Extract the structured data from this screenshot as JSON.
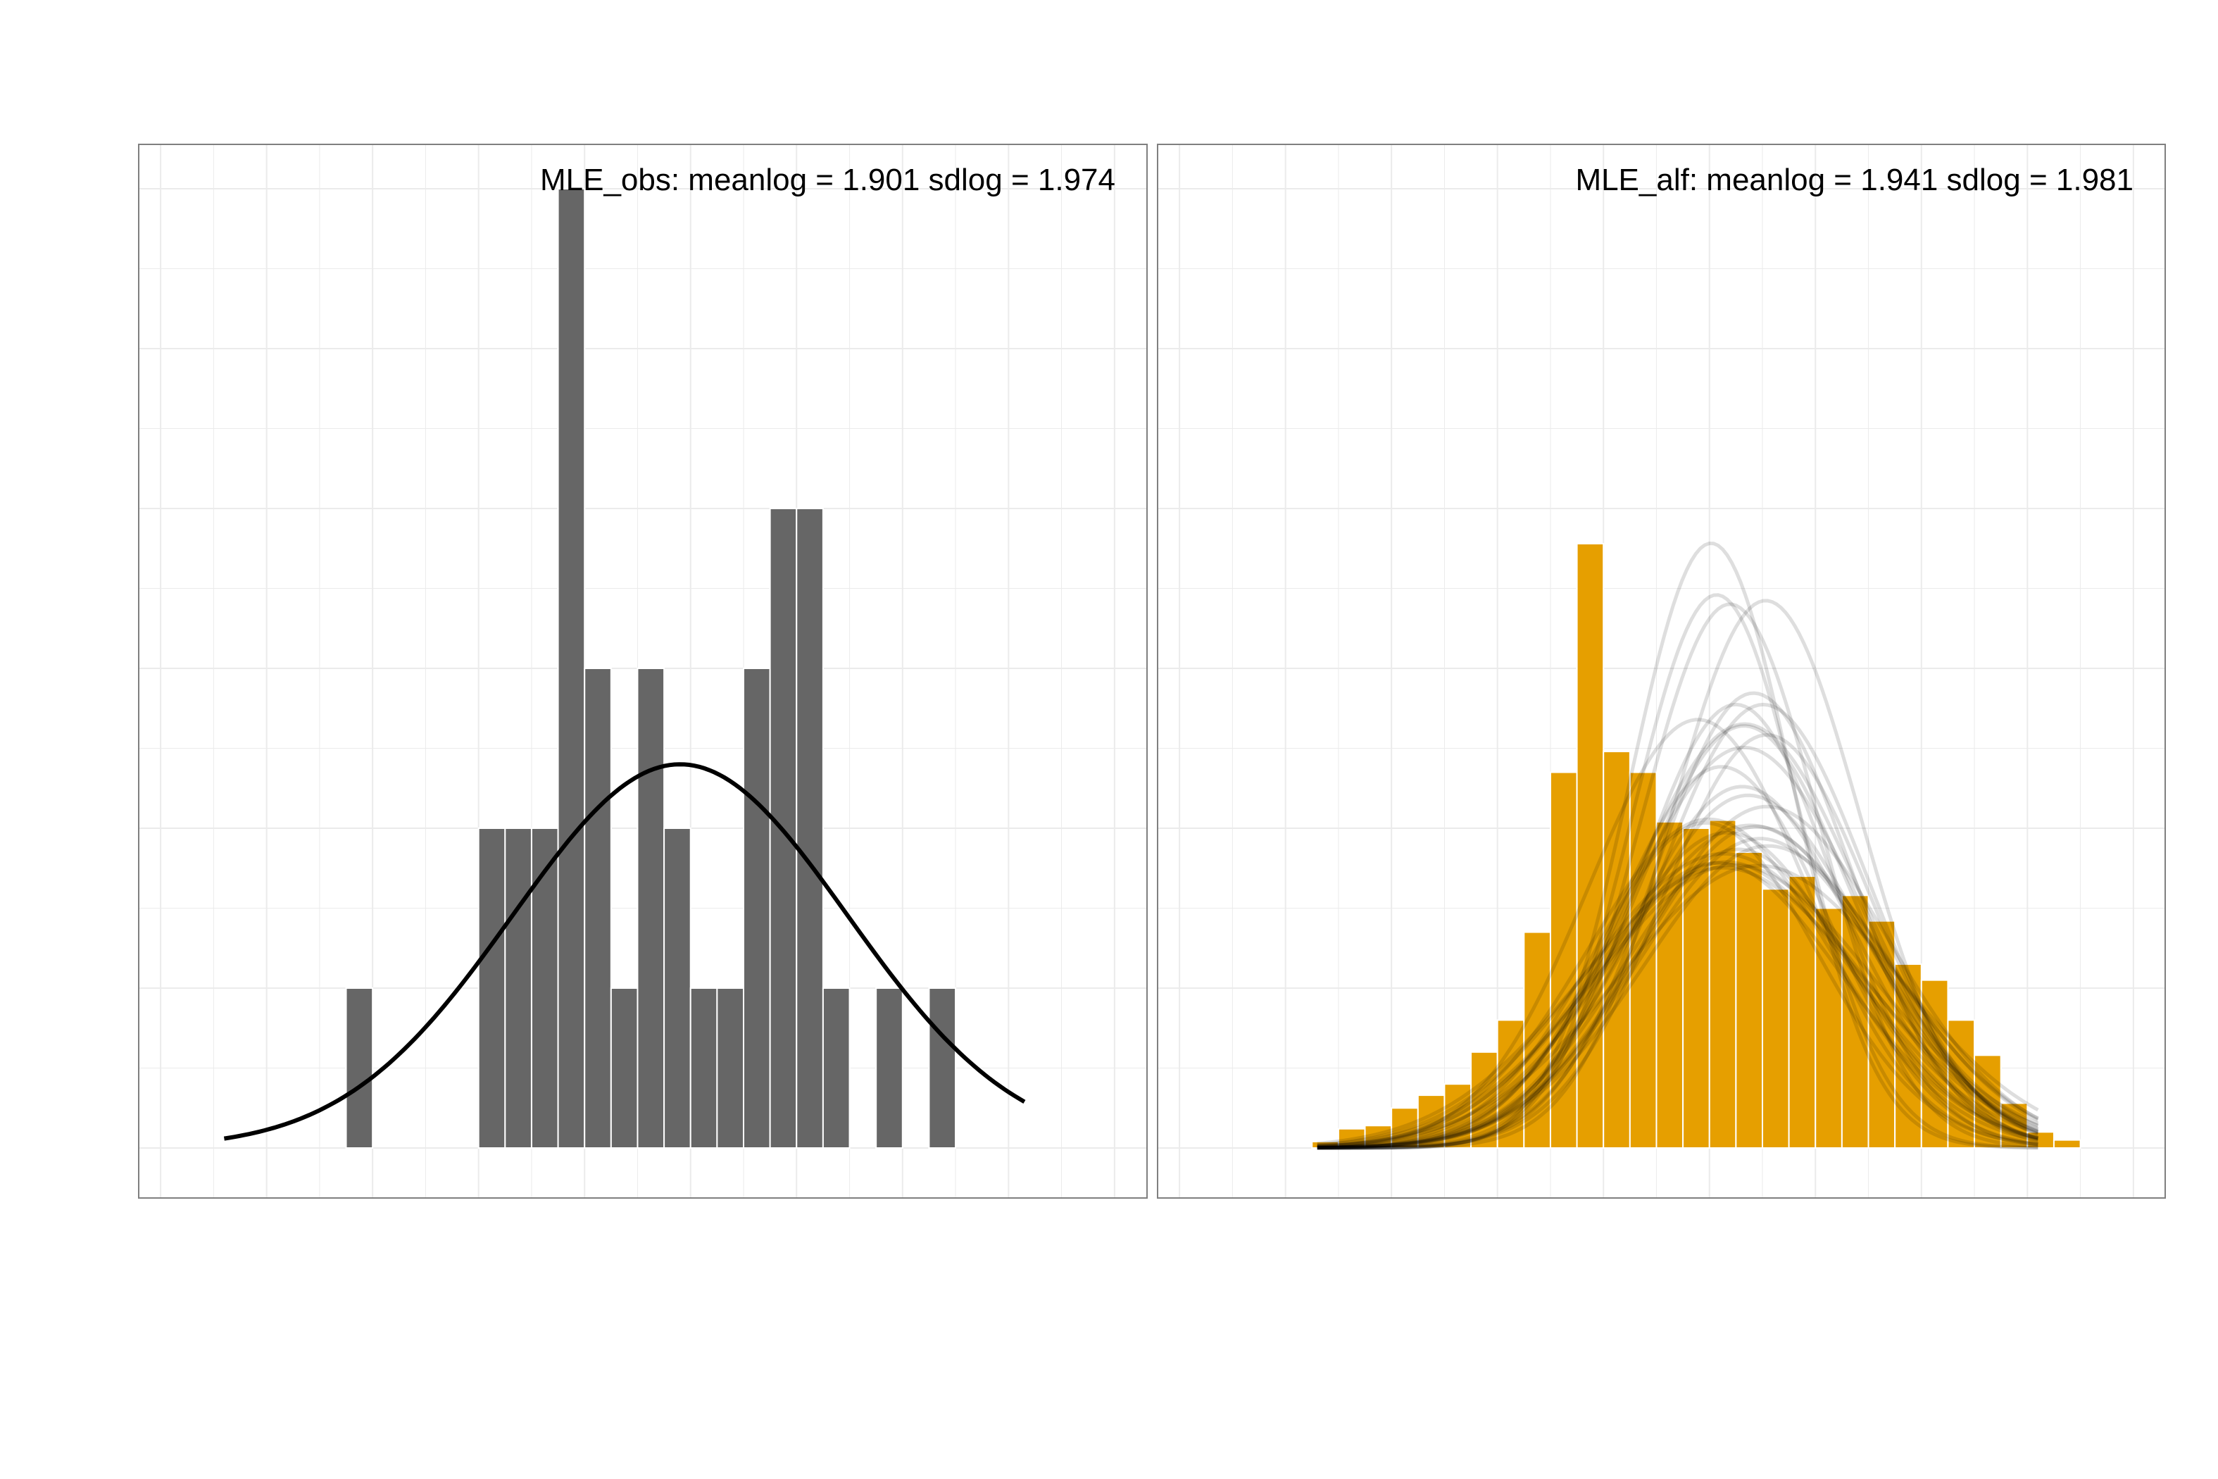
{
  "colors": {
    "left_bar": "#666666",
    "right_bar": "#e69f00",
    "curve": "#000000",
    "grid": "#ebebeb",
    "border": "#7f7f7f"
  },
  "chart_data": [
    {
      "type": "bar",
      "subtype": "histogram-with-density",
      "annotation": "MLE_obs: meanlog = 1.901 sdlog = 1.974",
      "grid": true,
      "xlim": [
        -3.2,
        6.3
      ],
      "ylim": [
        -0.3,
        6.0
      ],
      "bin_width": 0.25,
      "bin_starts": [
        -1.25,
        -1.0,
        -0.75,
        -0.5,
        -0.25,
        0.0,
        0.25,
        0.5,
        0.75,
        1.0,
        1.25,
        1.5,
        1.75,
        2.0,
        2.25,
        2.5,
        2.75,
        3.0,
        3.25,
        3.5,
        3.75,
        4.0,
        4.25,
        4.5,
        4.75,
        5.0,
        5.25
      ],
      "values": [
        1,
        0,
        0,
        0,
        0,
        2,
        2,
        2,
        6,
        3,
        1,
        3,
        2,
        1,
        1,
        3,
        4,
        4,
        1,
        0,
        1,
        0,
        1,
        0,
        0,
        0,
        0
      ],
      "curve": {
        "name": "lognormal fit",
        "meanlog": 1.901,
        "sdlog": 1.974,
        "peak": 2.4,
        "x_range": [
          -2.4,
          5.15
        ]
      }
    },
    {
      "type": "bar",
      "subtype": "histogram-with-density",
      "annotation": "MLE_alf: meanlog = 1.941 sdlog = 1.981",
      "grid": true,
      "xlim": [
        -3.2,
        6.3
      ],
      "ylim": [
        -0.3,
        6.0
      ],
      "bin_width": 0.25,
      "bin_starts": [
        -1.75,
        -1.5,
        -1.25,
        -1.0,
        -0.75,
        -0.5,
        -0.25,
        0.0,
        0.25,
        0.5,
        0.75,
        1.0,
        1.25,
        1.5,
        1.75,
        2.0,
        2.25,
        2.5,
        2.75,
        3.0,
        3.25,
        3.5,
        3.75,
        4.0,
        4.25,
        4.5,
        4.75,
        5.0,
        5.25
      ],
      "values": [
        0.04,
        0.12,
        0.14,
        0.25,
        0.33,
        0.4,
        0.6,
        0.8,
        1.35,
        2.35,
        3.78,
        2.48,
        2.35,
        2.04,
        2.0,
        2.05,
        1.85,
        1.62,
        1.7,
        1.5,
        1.58,
        1.42,
        1.15,
        1.05,
        0.8,
        0.58,
        0.28,
        0.1,
        0.05
      ],
      "curve": {
        "name": "bootstrap lognormal fits",
        "count": 30,
        "peak_range": [
          1.75,
          3.8
        ],
        "x_range": [
          -1.7,
          5.1
        ]
      }
    }
  ],
  "texts": {
    "left_annotation": "MLE_obs: meanlog = 1.901 sdlog = 1.974",
    "right_annotation": "MLE_alf: meanlog = 1.941 sdlog = 1.981"
  }
}
